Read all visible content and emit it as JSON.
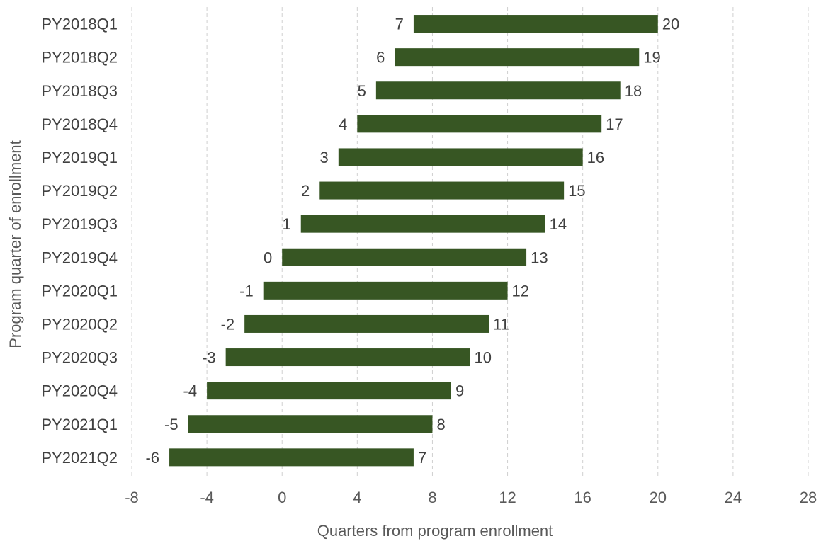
{
  "chart_data": {
    "type": "bar",
    "orientation": "horizontal",
    "style": "floating-range",
    "categories": [
      "PY2018Q1",
      "PY2018Q2",
      "PY2018Q3",
      "PY2018Q4",
      "PY2019Q1",
      "PY2019Q2",
      "PY2019Q3",
      "PY2019Q4",
      "PY2020Q1",
      "PY2020Q2",
      "PY2020Q3",
      "PY2020Q4",
      "PY2021Q1",
      "PY2021Q2"
    ],
    "starts": [
      7,
      6,
      5,
      4,
      3,
      2,
      1,
      0,
      -1,
      -2,
      -3,
      -4,
      -5,
      -6
    ],
    "ends": [
      20,
      19,
      18,
      17,
      16,
      15,
      14,
      13,
      12,
      11,
      10,
      9,
      8,
      7
    ],
    "xlabel": "Quarters from program enrollment",
    "ylabel": "Program quarter of enrollment",
    "xlim": [
      -8,
      28
    ],
    "xticks": [
      -8,
      -4,
      0,
      4,
      8,
      12,
      16,
      20,
      24,
      28
    ],
    "grid": "vertical-dashed",
    "bar_color": "#375623"
  }
}
